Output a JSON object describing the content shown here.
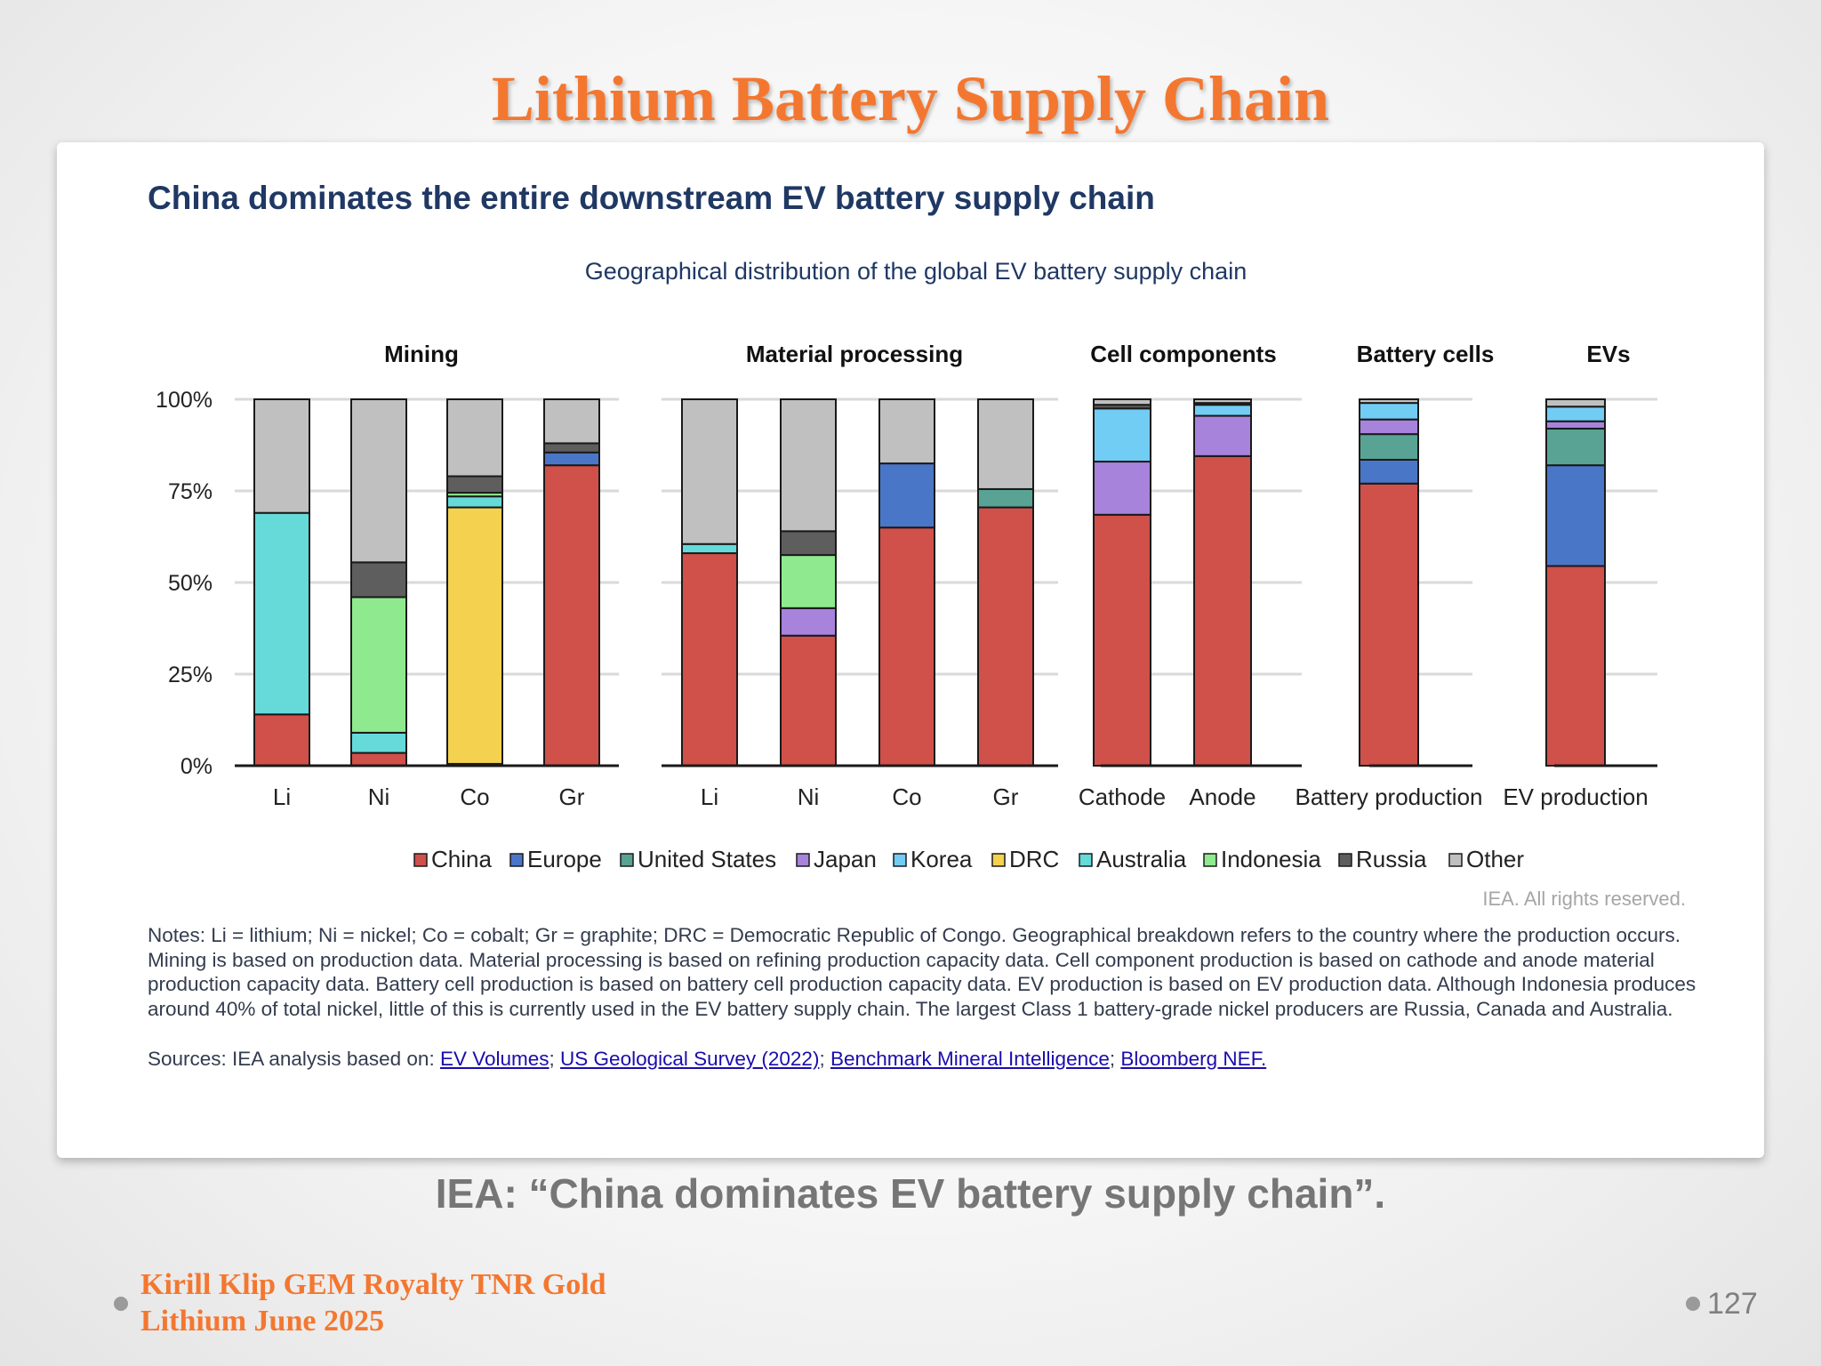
{
  "slide": {
    "title": "Lithium Battery Supply Chain",
    "caption": "IEA: “China dominates EV battery supply chain”.",
    "footer_line1": "Kirill Klip GEM Royalty TNR Gold",
    "footer_line2": "Lithium June 2025",
    "page_number": "127"
  },
  "card": {
    "headline": "China dominates the entire downstream EV battery supply chain",
    "rights": "IEA. All rights reserved.",
    "notes": "Notes: Li = lithium; Ni = nickel; Co = cobalt; Gr = graphite; DRC = Democratic Republic of Congo. Geographical breakdown refers to the country where the production occurs. Mining is based on production data. Material processing is based on refining production capacity data. Cell component production is based on cathode and anode material production capacity data. Battery cell production is based on battery cell production capacity data. EV production is based on EV production data. Although Indonesia produces around 40% of total nickel, little of this is currently used in the EV battery supply chain. The largest Class 1 battery-grade nickel producers are Russia, Canada and Australia.",
    "sources_prefix": "Sources: IEA analysis based on: ",
    "sources_links": [
      "EV Volumes",
      "US Geological Survey (2022)",
      "Benchmark Mineral Intelligence",
      "Bloomberg NEF."
    ]
  },
  "chart_data": {
    "type": "bar",
    "stacked": true,
    "title": "Geographical distribution of the global EV battery supply chain",
    "y_ticks": [
      "0%",
      "25%",
      "50%",
      "75%",
      "100%"
    ],
    "ylim": [
      0,
      100
    ],
    "groups": [
      {
        "name": "Mining",
        "categories": [
          "Li",
          "Ni",
          "Co",
          "Gr"
        ]
      },
      {
        "name": "Material processing",
        "categories": [
          "Li",
          "Ni",
          "Co",
          "Gr"
        ]
      },
      {
        "name": "Cell components",
        "categories": [
          "Cathode",
          "Anode"
        ]
      },
      {
        "name": "Battery cells",
        "categories": [
          "Battery production"
        ]
      },
      {
        "name": "EVs",
        "categories": [
          "EV production"
        ]
      }
    ],
    "series_colors": {
      "China": "#d0504a",
      "Europe": "#4a76c8",
      "United States": "#58a394",
      "Japan": "#a783dc",
      "Korea": "#72cdf4",
      "DRC": "#f4d24f",
      "Australia": "#66d9d9",
      "Indonesia": "#8fea8f",
      "Russia": "#5e5e5e",
      "Other": "#c0c0c0"
    },
    "series": [
      {
        "name": "China",
        "values": [
          14,
          3.5,
          0.5,
          82,
          58,
          35.5,
          65,
          70.5,
          68.5,
          84.5,
          77,
          54.5
        ]
      },
      {
        "name": "Europe",
        "values": [
          0,
          0,
          0,
          3.5,
          0,
          0,
          17.5,
          0,
          0,
          0,
          6.5,
          27.5
        ]
      },
      {
        "name": "United States",
        "values": [
          0,
          0,
          0,
          0,
          0,
          0,
          0,
          5,
          0,
          0,
          7,
          10
        ]
      },
      {
        "name": "Japan",
        "values": [
          0,
          0,
          0,
          0,
          0,
          7.5,
          0,
          0,
          14.5,
          11,
          4,
          2
        ]
      },
      {
        "name": "Korea",
        "values": [
          0,
          0,
          0,
          0,
          0,
          0,
          0,
          0,
          14.5,
          3,
          4.5,
          4
        ]
      },
      {
        "name": "DRC",
        "values": [
          0,
          0,
          70,
          0,
          0,
          0,
          0,
          0,
          0,
          0,
          0,
          0
        ]
      },
      {
        "name": "Australia",
        "values": [
          55,
          5.5,
          3,
          0,
          2.5,
          0,
          0,
          0,
          0,
          0,
          0,
          0
        ]
      },
      {
        "name": "Indonesia",
        "values": [
          0,
          37,
          1,
          0,
          0,
          14.5,
          0,
          0,
          0,
          0,
          0,
          0
        ]
      },
      {
        "name": "Russia",
        "values": [
          0,
          9.5,
          4.5,
          2.5,
          0,
          6.5,
          0,
          0,
          1,
          0.5,
          0,
          0
        ]
      },
      {
        "name": "Other",
        "values": [
          31,
          44.5,
          21,
          12,
          39.5,
          36,
          17.5,
          24.5,
          1.5,
          1,
          1,
          2
        ]
      }
    ]
  }
}
